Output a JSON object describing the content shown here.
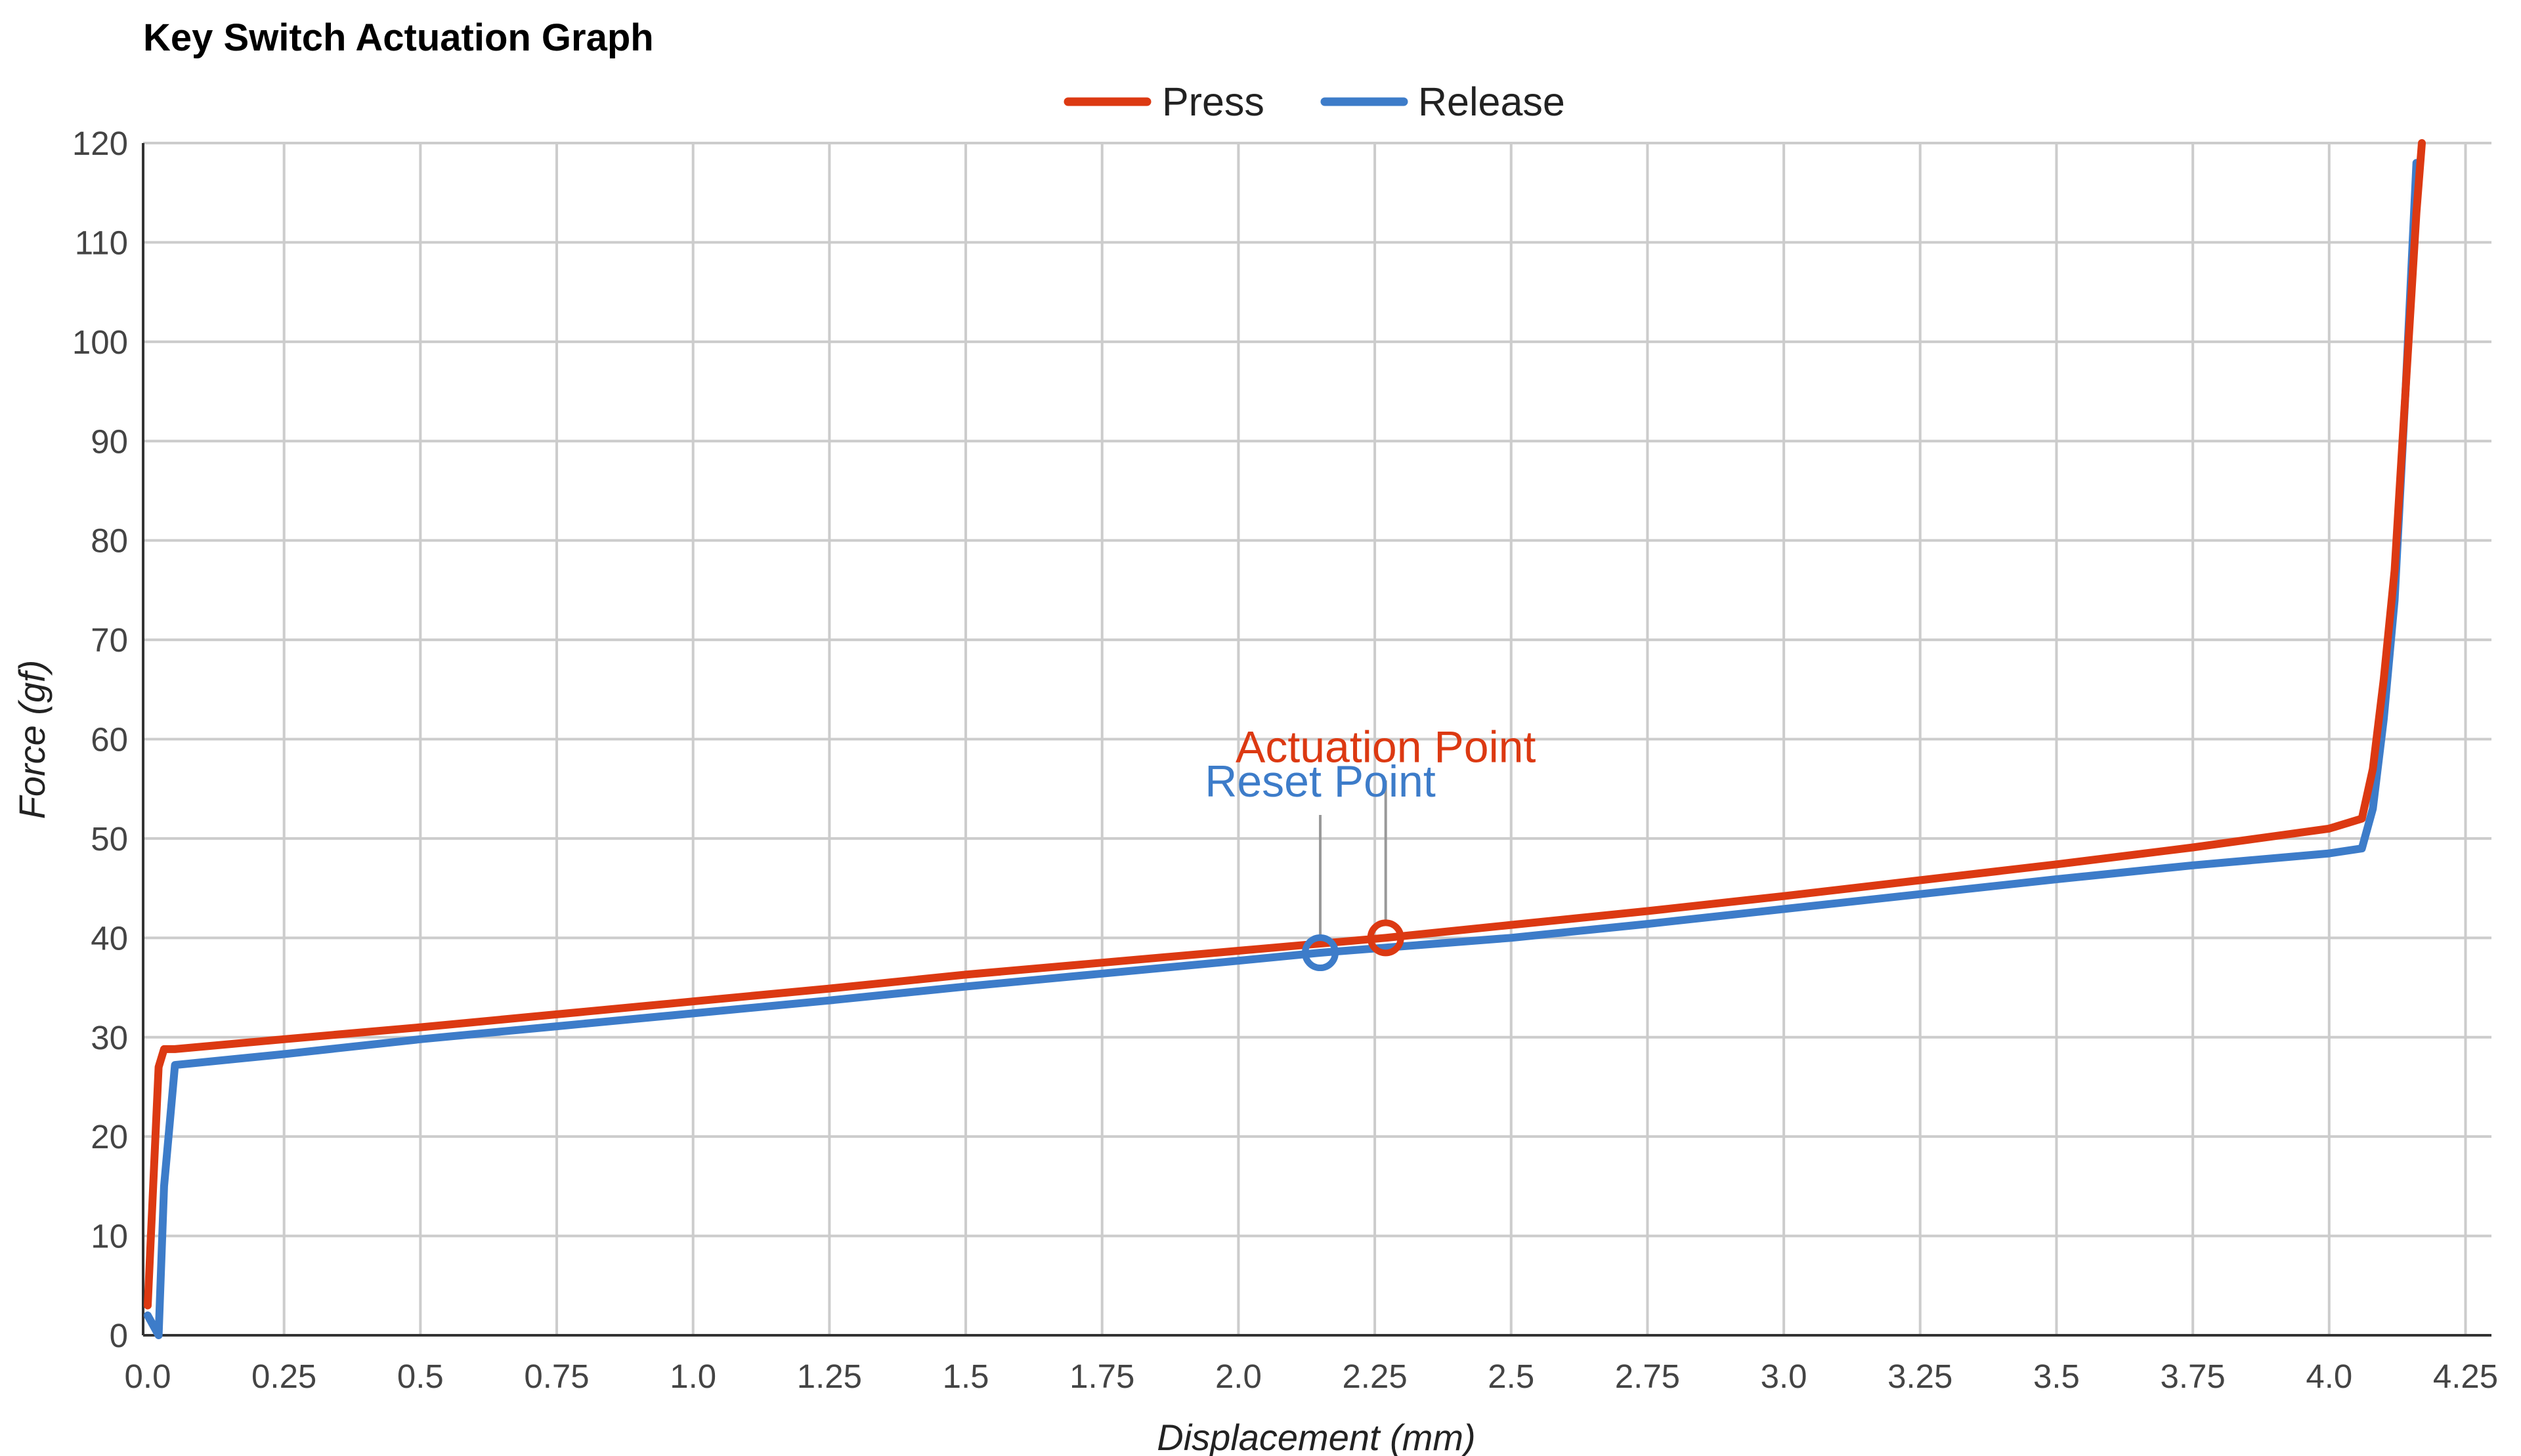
{
  "chart_data": {
    "type": "line",
    "title": "Key Switch Actuation Graph",
    "xlabel": "Displacement (mm)",
    "ylabel": "Force (gf)",
    "xlim": [
      0,
      4.3
    ],
    "ylim": [
      0,
      120
    ],
    "x_ticks": [
      0,
      0.25,
      0.5,
      0.75,
      1.0,
      1.25,
      1.5,
      1.75,
      2.0,
      2.25,
      2.5,
      2.75,
      3.0,
      3.25,
      3.5,
      3.75,
      4.0,
      4.25
    ],
    "x_tick_labels": [
      "0.0",
      "0.25",
      "0.5",
      "0.75",
      "1.0",
      "1.25",
      "1.5",
      "1.75",
      "2.0",
      "2.25",
      "2.5",
      "2.75",
      "3.0",
      "3.25",
      "3.5",
      "3.75",
      "4.0",
      "4.25"
    ],
    "y_ticks": [
      0,
      10,
      20,
      30,
      40,
      50,
      60,
      70,
      80,
      90,
      100,
      110,
      120
    ],
    "y_tick_labels": [
      "0",
      "10",
      "20",
      "30",
      "40",
      "50",
      "60",
      "70",
      "80",
      "90",
      "100",
      "110",
      "120"
    ],
    "grid": true,
    "legend_position": "top-center",
    "series": [
      {
        "name": "Press",
        "color": "#dc3912",
        "x": [
          0.0,
          0.01,
          0.02,
          0.03,
          0.05,
          0.25,
          0.5,
          0.75,
          1.0,
          1.25,
          1.5,
          1.75,
          2.0,
          2.27,
          2.5,
          2.75,
          3.0,
          3.25,
          3.5,
          3.75,
          4.0,
          4.06,
          4.08,
          4.1,
          4.12,
          4.14,
          4.16,
          4.17
        ],
        "values": [
          3,
          15,
          27,
          28.8,
          28.8,
          29.8,
          31.0,
          32.3,
          33.6,
          34.9,
          36.3,
          37.5,
          38.7,
          40.0,
          41.3,
          42.7,
          44.2,
          45.8,
          47.4,
          49.1,
          51.0,
          52.0,
          57,
          66,
          77,
          95,
          113,
          120
        ]
      },
      {
        "name": "Release",
        "color": "#3d7cc9",
        "x": [
          0.0,
          0.02,
          0.03,
          0.05,
          0.25,
          0.5,
          0.75,
          1.0,
          1.25,
          1.5,
          1.75,
          2.0,
          2.15,
          2.5,
          2.75,
          3.0,
          3.25,
          3.5,
          3.75,
          4.0,
          4.06,
          4.08,
          4.1,
          4.12,
          4.14,
          4.16
        ],
        "values": [
          2,
          0,
          15,
          27.2,
          28.3,
          29.8,
          31.1,
          32.4,
          33.7,
          35.1,
          36.4,
          37.7,
          38.5,
          40.0,
          41.4,
          42.9,
          44.4,
          45.9,
          47.3,
          48.5,
          49.0,
          53,
          62,
          74,
          95,
          118
        ]
      }
    ],
    "annotations": [
      {
        "label": "Actuation Point",
        "series": "Press",
        "x": 2.27,
        "y": 40.0,
        "color": "#dc3912"
      },
      {
        "label": "Reset Point",
        "series": "Release",
        "x": 2.15,
        "y": 38.5,
        "color": "#3d7cc9"
      }
    ]
  }
}
